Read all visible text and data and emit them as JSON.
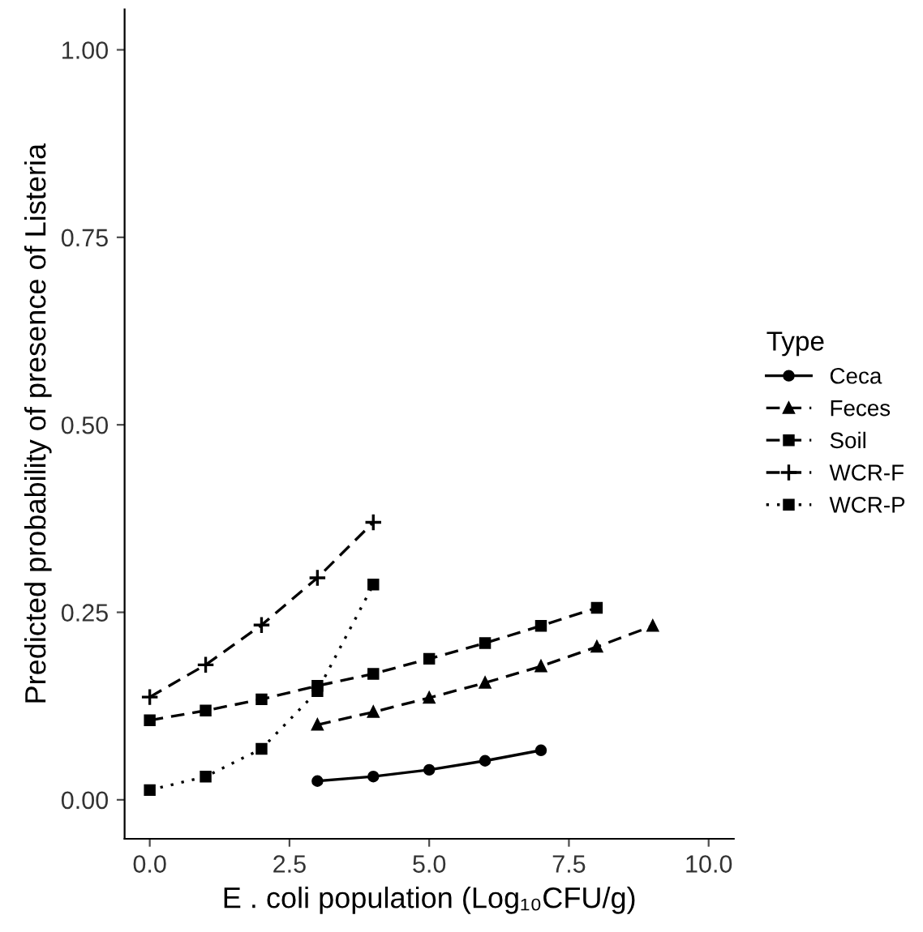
{
  "chart_data": {
    "type": "line",
    "xlabel": "E . coli population (Log₁₀CFU/g)",
    "ylabel": "Predicted probability of presence of Listeria",
    "legend_title": "Type",
    "legend": "right",
    "grid": false,
    "xlim": [
      -0.45,
      10.45
    ],
    "xticks": [
      {
        "value": 0,
        "label": "0.0"
      },
      {
        "value": 2.5,
        "label": "2.5"
      },
      {
        "value": 5,
        "label": "5.0"
      },
      {
        "value": 7.5,
        "label": "7.5"
      },
      {
        "value": 10,
        "label": "10.0"
      }
    ],
    "ylim": [
      -0.052,
      1.054
    ],
    "yticks": [
      {
        "value": 0,
        "label": "0.00"
      },
      {
        "value": 0.25,
        "label": "0.25"
      },
      {
        "value": 0.5,
        "label": "0.50"
      },
      {
        "value": 0.75,
        "label": "0.75"
      },
      {
        "value": 1,
        "label": "1.00"
      }
    ],
    "series": [
      {
        "name": "Ceca",
        "color": "#000000",
        "marker": "circle",
        "line_style": "solid",
        "x": [
          3,
          4,
          5,
          6,
          7
        ],
        "values": [
          0.025,
          0.031,
          0.04,
          0.052,
          0.066
        ]
      },
      {
        "name": "Feces",
        "color": "#000000",
        "marker": "triangle",
        "line_style": "dashed",
        "x": [
          3,
          4,
          5,
          6,
          7,
          8,
          9
        ],
        "values": [
          0.1,
          0.117,
          0.136,
          0.156,
          0.178,
          0.204,
          0.232
        ]
      },
      {
        "name": "Soil",
        "color": "#000000",
        "marker": "square",
        "line_style": "dashed",
        "x": [
          0,
          1,
          2,
          3,
          4,
          5,
          6,
          7,
          8
        ],
        "values": [
          0.106,
          0.119,
          0.134,
          0.152,
          0.168,
          0.188,
          0.209,
          0.232,
          0.256
        ]
      },
      {
        "name": "WCR-F",
        "color": "#000000",
        "marker": "cross",
        "line_style": "dashed",
        "x": [
          0,
          1,
          2,
          3,
          4
        ],
        "values": [
          0.137,
          0.18,
          0.233,
          0.296,
          0.37
        ]
      },
      {
        "name": "WCR-P",
        "color": "#000000",
        "marker": "square",
        "line_style": "dotted",
        "x": [
          0,
          1,
          2,
          3,
          4
        ],
        "values": [
          0.013,
          0.031,
          0.068,
          0.145,
          0.287
        ]
      }
    ]
  }
}
